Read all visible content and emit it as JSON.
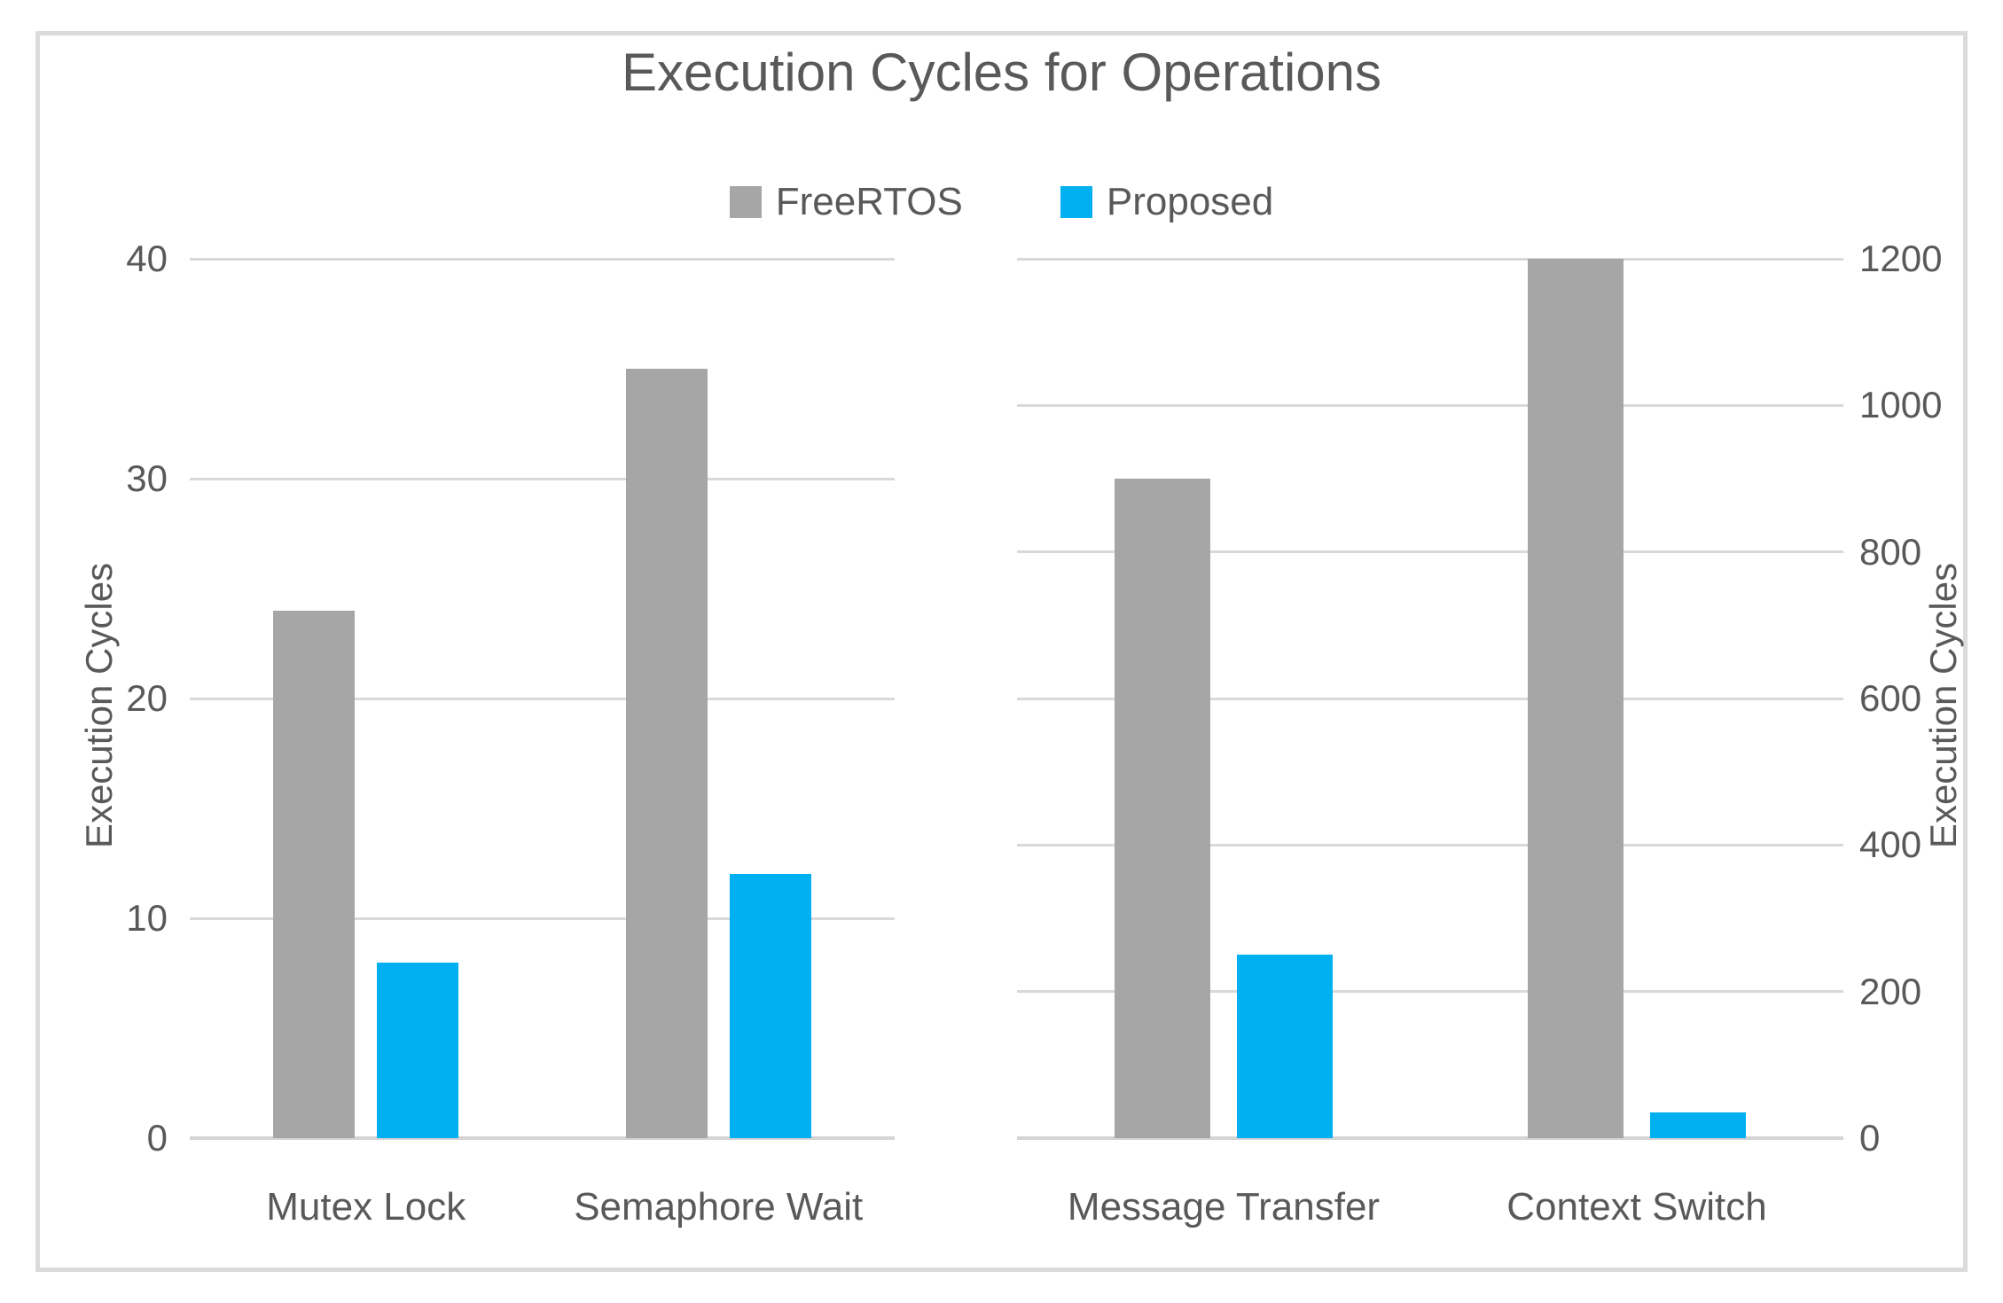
{
  "title": "Execution Cycles for Operations",
  "legend": {
    "position": "top",
    "items": [
      {
        "label": "FreeRTOS",
        "color": "#a6a6a6"
      },
      {
        "label": "Proposed",
        "color": "#00b0f0"
      }
    ]
  },
  "colors": {
    "bar_freertos": "#a6a6a6",
    "bar_proposed": "#00b0f0",
    "text": "#595959",
    "gridline": "#d9d9d9",
    "frame_border": "#dbdbdb",
    "background": "#ffffff"
  },
  "chart_data": {
    "type": "bar",
    "title": "Execution Cycles for Operations",
    "grid": true,
    "legend_position": "top-center",
    "series_names": [
      "FreeRTOS",
      "Proposed"
    ],
    "panels": [
      {
        "name": "left-panel",
        "categories": [
          "Mutex Lock",
          "Semaphore Wait"
        ],
        "axis": {
          "label": "Execution Cycles",
          "side": "left",
          "min": 0,
          "max": 40,
          "ticks": [
            0,
            10,
            20,
            30,
            40
          ]
        },
        "series": [
          {
            "name": "FreeRTOS",
            "color": "#a6a6a6",
            "values": [
              24,
              35
            ]
          },
          {
            "name": "Proposed",
            "color": "#00b0f0",
            "values": [
              8,
              12
            ]
          }
        ]
      },
      {
        "name": "right-panel",
        "categories": [
          "Message Transfer",
          "Context Switch"
        ],
        "axis": {
          "label": "Execution Cycles",
          "side": "right",
          "min": 0,
          "max": 1200,
          "ticks": [
            0,
            200,
            400,
            600,
            800,
            1000,
            1200
          ]
        },
        "series": [
          {
            "name": "FreeRTOS",
            "color": "#a6a6a6",
            "values": [
              900,
              1200
            ]
          },
          {
            "name": "Proposed",
            "color": "#00b0f0",
            "values": [
              250,
              35
            ]
          }
        ]
      }
    ]
  }
}
